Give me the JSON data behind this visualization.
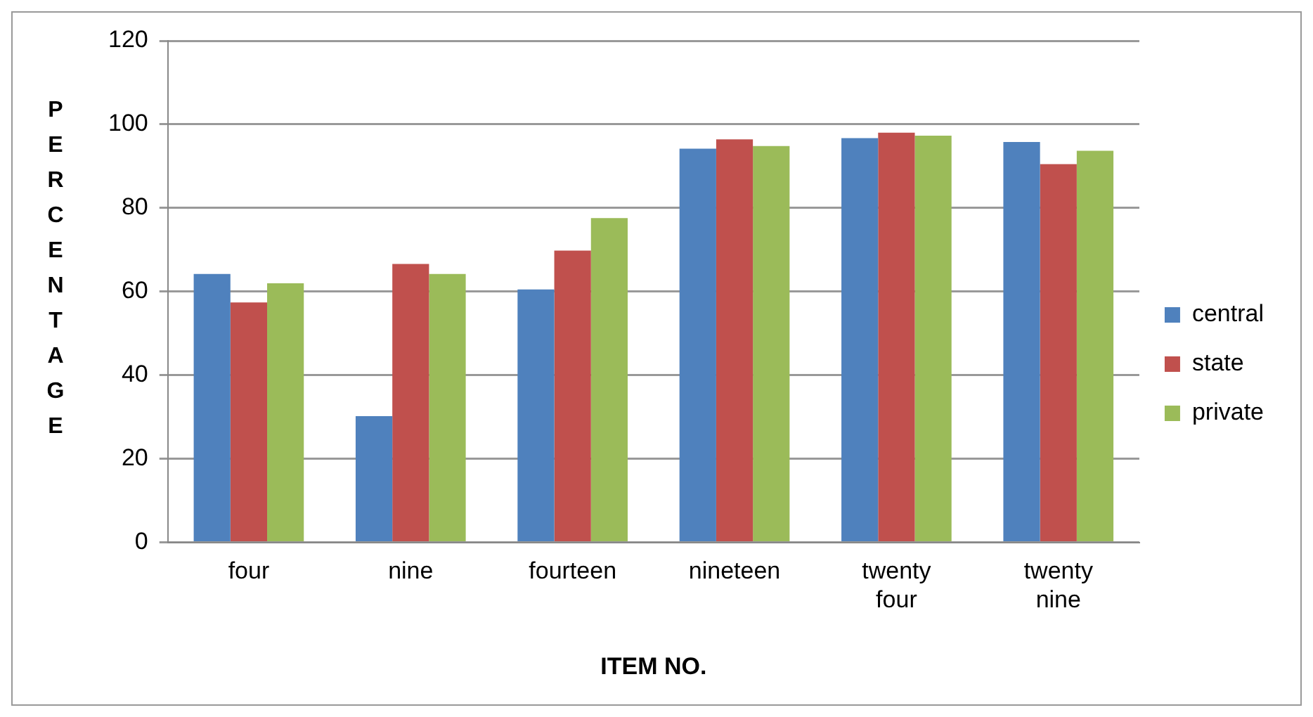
{
  "chart_data": {
    "type": "bar",
    "xlabel": "ITEM NO.",
    "ylabel": "PERCENTAGE",
    "categories": [
      "four",
      "nine",
      "fourteen",
      "nineteen",
      "twenty four",
      "twenty nine"
    ],
    "series": [
      {
        "name": "central",
        "color": "#4f81bd",
        "values": [
          64.2,
          30.2,
          60.5,
          94.2,
          96.7,
          95.8
        ]
      },
      {
        "name": "state",
        "color": "#c0504d",
        "values": [
          57.4,
          66.6,
          69.8,
          96.4,
          98.0,
          90.5
        ]
      },
      {
        "name": "private",
        "color": "#9bbb59",
        "values": [
          62.0,
          64.2,
          77.6,
          94.8,
          97.3,
          93.7
        ]
      }
    ],
    "ylim": [
      0,
      120
    ],
    "yticks": [
      0,
      20,
      40,
      60,
      80,
      100,
      120
    ],
    "grid": "y",
    "legend": "right"
  }
}
